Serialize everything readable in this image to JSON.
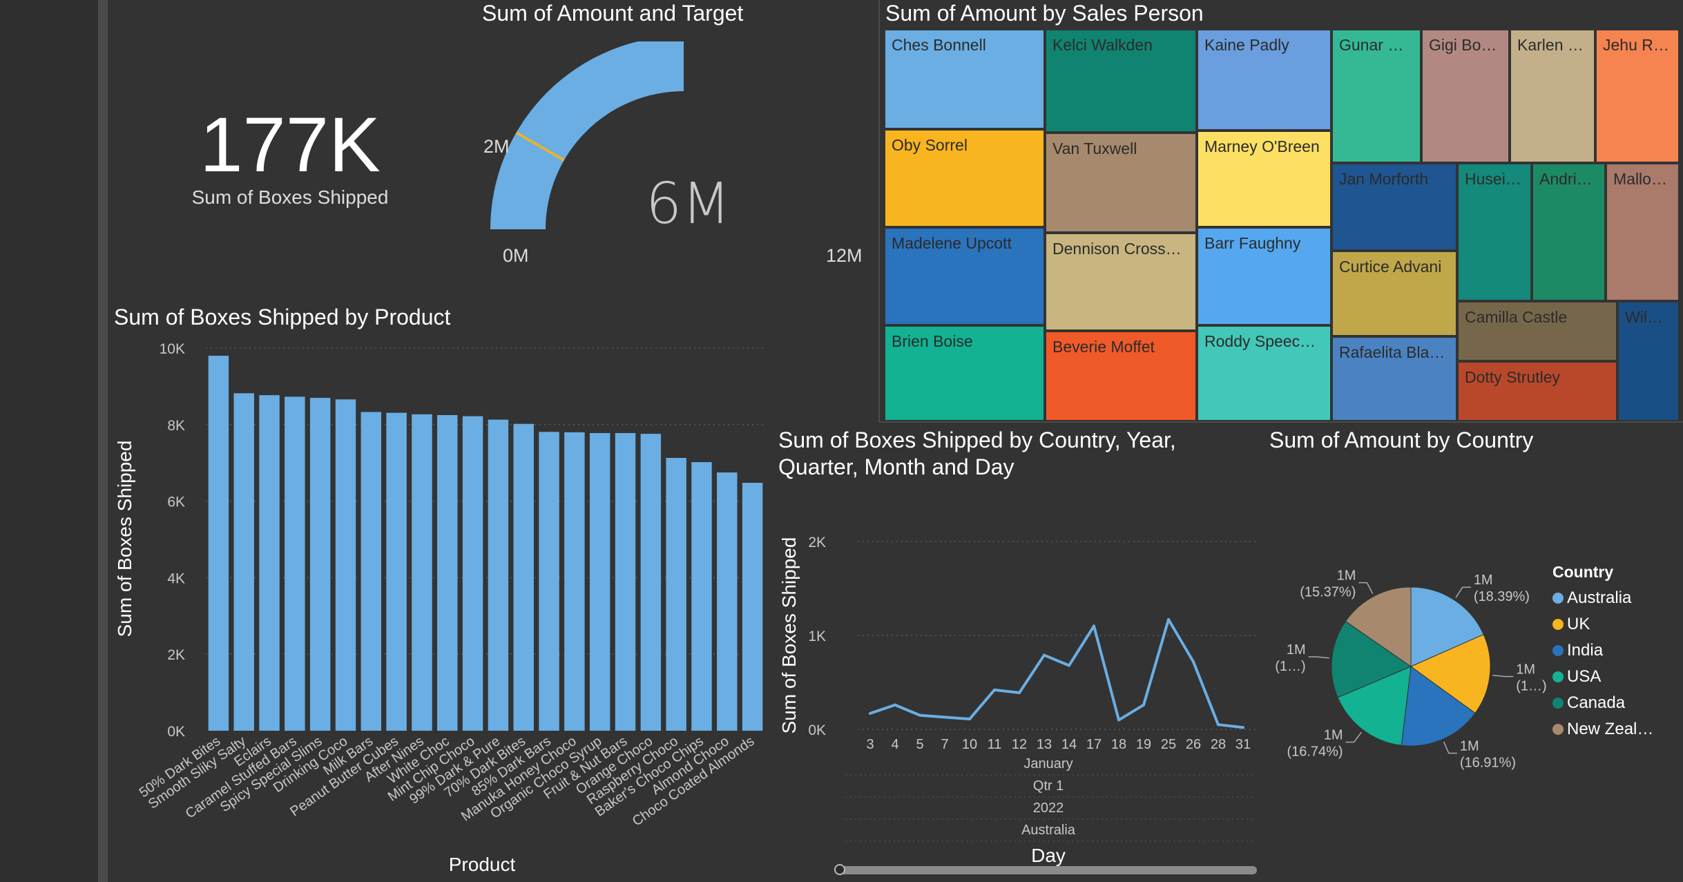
{
  "colors": {
    "bar": "#6aaee3",
    "line": "#6aaee3",
    "gauge_fill": "#6aaee3",
    "gauge_target": "#e8b230"
  },
  "card": {
    "value": "177K",
    "label": "Sum of Boxes Shipped"
  },
  "gauge": {
    "title": "Sum of Amount and Target",
    "value_label": "6M",
    "target_label": "2M",
    "min_label": "0M",
    "max_label": "12M"
  },
  "treemap": {
    "title": "Sum of Amount by Sales Person",
    "tiles": [
      {
        "label": "Ches Bonnell",
        "color": "#6aaee3"
      },
      {
        "label": "Oby Sorrel",
        "color": "#f8b51f"
      },
      {
        "label": "Madelene Upcott",
        "color": "#2a73bd"
      },
      {
        "label": "Brien Boise",
        "color": "#12b293"
      },
      {
        "label": "Kelci Walkden",
        "color": "#108470"
      },
      {
        "label": "Van Tuxwell",
        "color": "#a78a6d"
      },
      {
        "label": "Dennison Cross…",
        "color": "#c8b580"
      },
      {
        "label": "Beverie Moffet",
        "color": "#f05a28"
      },
      {
        "label": "Kaine Padly",
        "color": "#6a9ede"
      },
      {
        "label": "Marney O'Breen",
        "color": "#fde063"
      },
      {
        "label": "Barr Faughny",
        "color": "#55a8f0"
      },
      {
        "label": "Roddy Speec…",
        "color": "#43c7b8"
      },
      {
        "label": "Gunar …",
        "color": "#35b995"
      },
      {
        "label": "Gigi Bo…",
        "color": "#b28982"
      },
      {
        "label": "Karlen …",
        "color": "#c3b08a"
      },
      {
        "label": "Jehu R…",
        "color": "#f68451"
      },
      {
        "label": "Jan Morforth",
        "color": "#1f5591"
      },
      {
        "label": "Curtice Advani",
        "color": "#c0a749"
      },
      {
        "label": "Rafaelita Bla…",
        "color": "#4b83c2"
      },
      {
        "label": "Husei…",
        "color": "#138a7b"
      },
      {
        "label": "Andri…",
        "color": "#1c8a65"
      },
      {
        "label": "Mallo…",
        "color": "#aa7a6b"
      },
      {
        "label": "Camilla Castle",
        "color": "#76674b"
      },
      {
        "label": "Dotty Strutley",
        "color": "#b9482a"
      },
      {
        "label": "Wil…",
        "color": "#1a4f86"
      }
    ]
  },
  "chart_data": [
    {
      "type": "bar",
      "title": "Sum of Boxes Shipped by Product",
      "xlabel": "Product",
      "ylabel": "Sum of Boxes Shipped",
      "ylim": [
        0,
        10000
      ],
      "yticks": [
        "0K",
        "2K",
        "4K",
        "6K",
        "8K",
        "10K"
      ],
      "categories": [
        "50% Dark Bites",
        "Smooth Sliky Salty",
        "Eclairs",
        "Caramel Stuffed Bars",
        "Spicy Special Slims",
        "Drinking Coco",
        "Milk Bars",
        "Peanut Butter Cubes",
        "After Nines",
        "White Choc",
        "Mint Chip Choco",
        "99% Dark & Pure",
        "70% Dark Bites",
        "85% Dark Bars",
        "Manuka Honey Choco",
        "Organic Choco Syrup",
        "Fruit & Nut Bars",
        "Orange Choco",
        "Raspberry Choco",
        "Baker's Choco Chips",
        "Almond Choco",
        "Choco Coated Almonds"
      ],
      "values": [
        9800,
        8820,
        8770,
        8730,
        8700,
        8660,
        8330,
        8310,
        8270,
        8250,
        8220,
        8130,
        8020,
        7810,
        7800,
        7780,
        7780,
        7760,
        7130,
        7020,
        6750,
        6480
      ],
      "grid": true
    },
    {
      "type": "line",
      "title": "Sum of Boxes Shipped by Country, Year, Quarter, Month and Day",
      "xlabel": "Day",
      "ylabel": "Sum of Boxes Shipped",
      "ylim": [
        0,
        2000
      ],
      "yticks": [
        "0K",
        "1K",
        "2K"
      ],
      "x": [
        "3",
        "4",
        "5",
        "7",
        "10",
        "11",
        "12",
        "13",
        "14",
        "17",
        "18",
        "19",
        "25",
        "26",
        "28",
        "31"
      ],
      "values": [
        170,
        260,
        150,
        130,
        110,
        420,
        390,
        790,
        680,
        1100,
        100,
        260,
        1170,
        720,
        50,
        20
      ],
      "x_hierarchy": [
        "January",
        "Qtr 1",
        "2022",
        "Australia"
      ],
      "grid": true
    },
    {
      "type": "pie",
      "title": "Sum of Amount by Country",
      "legend_title": "Country",
      "legend_position": "right",
      "slices": [
        {
          "name": "Australia",
          "color": "#6aaee3",
          "value_label": "1M",
          "pct_label": "(18.39%)",
          "pct": 18.39
        },
        {
          "name": "UK",
          "color": "#f8b51f",
          "value_label": "1M",
          "pct_label": "(1…)",
          "pct": 16.6
        },
        {
          "name": "India",
          "color": "#2a73bd",
          "value_label": "1M",
          "pct_label": "(16.91%)",
          "pct": 16.91
        },
        {
          "name": "USA",
          "color": "#12b293",
          "value_label": "1M",
          "pct_label": "(16.74%)",
          "pct": 16.74
        },
        {
          "name": "Canada",
          "color": "#108470",
          "value_label": "1M",
          "pct_label": "(1…)",
          "pct": 15.99
        },
        {
          "name": "New Zeal…",
          "color": "#a78a6d",
          "value_label": "1M",
          "pct_label": "(15.37%)",
          "pct": 15.37
        }
      ]
    }
  ]
}
